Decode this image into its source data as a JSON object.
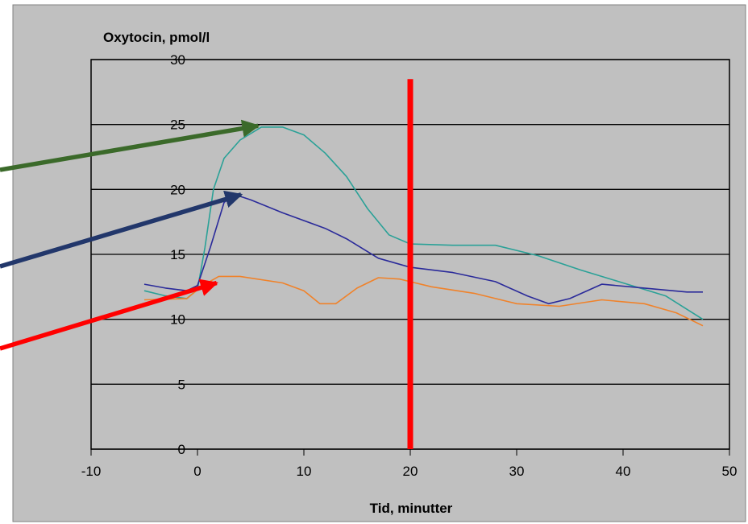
{
  "chart_data": {
    "type": "line",
    "title": "",
    "ylabel": "Oxytocin, pmol/l",
    "xlabel": "Tid, minutter",
    "xlim": [
      -10,
      50
    ],
    "ylim": [
      0,
      30
    ],
    "x_ticks": [
      -10,
      0,
      10,
      20,
      30,
      40,
      50
    ],
    "y_ticks": [
      0,
      5,
      10,
      15,
      20,
      25,
      30
    ],
    "grid": true,
    "background_color": "#c0c0c0",
    "series": [
      {
        "color": "#2aa197",
        "points": [
          [
            -5,
            12.2
          ],
          [
            -3,
            11.8
          ],
          [
            -1,
            11.6
          ],
          [
            0,
            12.3
          ],
          [
            0.7,
            15.5
          ],
          [
            1.5,
            20.0
          ],
          [
            2.5,
            22.4
          ],
          [
            4,
            23.8
          ],
          [
            6,
            24.8
          ],
          [
            8,
            24.8
          ],
          [
            10,
            24.2
          ],
          [
            12,
            22.8
          ],
          [
            14,
            21.0
          ],
          [
            16,
            18.5
          ],
          [
            18,
            16.5
          ],
          [
            20,
            15.8
          ],
          [
            24,
            15.7
          ],
          [
            28,
            15.7
          ],
          [
            32,
            14.9
          ],
          [
            36,
            13.8
          ],
          [
            40,
            12.8
          ],
          [
            44,
            11.8
          ],
          [
            47.5,
            10.0
          ]
        ]
      },
      {
        "color": "#2a2a9a",
        "points": [
          [
            -5,
            12.7
          ],
          [
            -3,
            12.4
          ],
          [
            -1,
            12.2
          ],
          [
            0,
            12.6
          ],
          [
            1.2,
            15.5
          ],
          [
            2.5,
            19.0
          ],
          [
            3.5,
            19.6
          ],
          [
            5,
            19.2
          ],
          [
            8,
            18.2
          ],
          [
            12,
            17.0
          ],
          [
            14,
            16.2
          ],
          [
            17,
            14.7
          ],
          [
            20,
            14.0
          ],
          [
            24,
            13.6
          ],
          [
            28,
            12.9
          ],
          [
            31,
            11.8
          ],
          [
            33,
            11.2
          ],
          [
            35,
            11.6
          ],
          [
            38,
            12.7
          ],
          [
            42,
            12.4
          ],
          [
            46,
            12.1
          ],
          [
            47.5,
            12.1
          ]
        ]
      },
      {
        "color": "#f0822a",
        "points": [
          [
            -5,
            11.5
          ],
          [
            -1,
            11.6
          ],
          [
            0.5,
            12.6
          ],
          [
            2,
            13.3
          ],
          [
            4,
            13.3
          ],
          [
            8,
            12.8
          ],
          [
            10,
            12.2
          ],
          [
            11.5,
            11.2
          ],
          [
            13,
            11.2
          ],
          [
            15,
            12.4
          ],
          [
            17,
            13.2
          ],
          [
            19,
            13.1
          ],
          [
            22,
            12.5
          ],
          [
            26,
            12.0
          ],
          [
            30,
            11.2
          ],
          [
            34,
            11.0
          ],
          [
            38,
            11.5
          ],
          [
            42,
            11.2
          ],
          [
            45,
            10.5
          ],
          [
            47.5,
            9.5
          ]
        ]
      }
    ],
    "annotations": {
      "vertical_marker": {
        "x": 20,
        "y_top": 28.5,
        "color": "#ff0000"
      },
      "arrows": [
        {
          "color": "#3b6a2a",
          "target": [
            5.7,
            24.9
          ]
        },
        {
          "color": "#22376b",
          "target": [
            4.1,
            19.6
          ]
        },
        {
          "color": "#ff0000",
          "target": [
            1.8,
            12.8
          ]
        }
      ]
    }
  }
}
